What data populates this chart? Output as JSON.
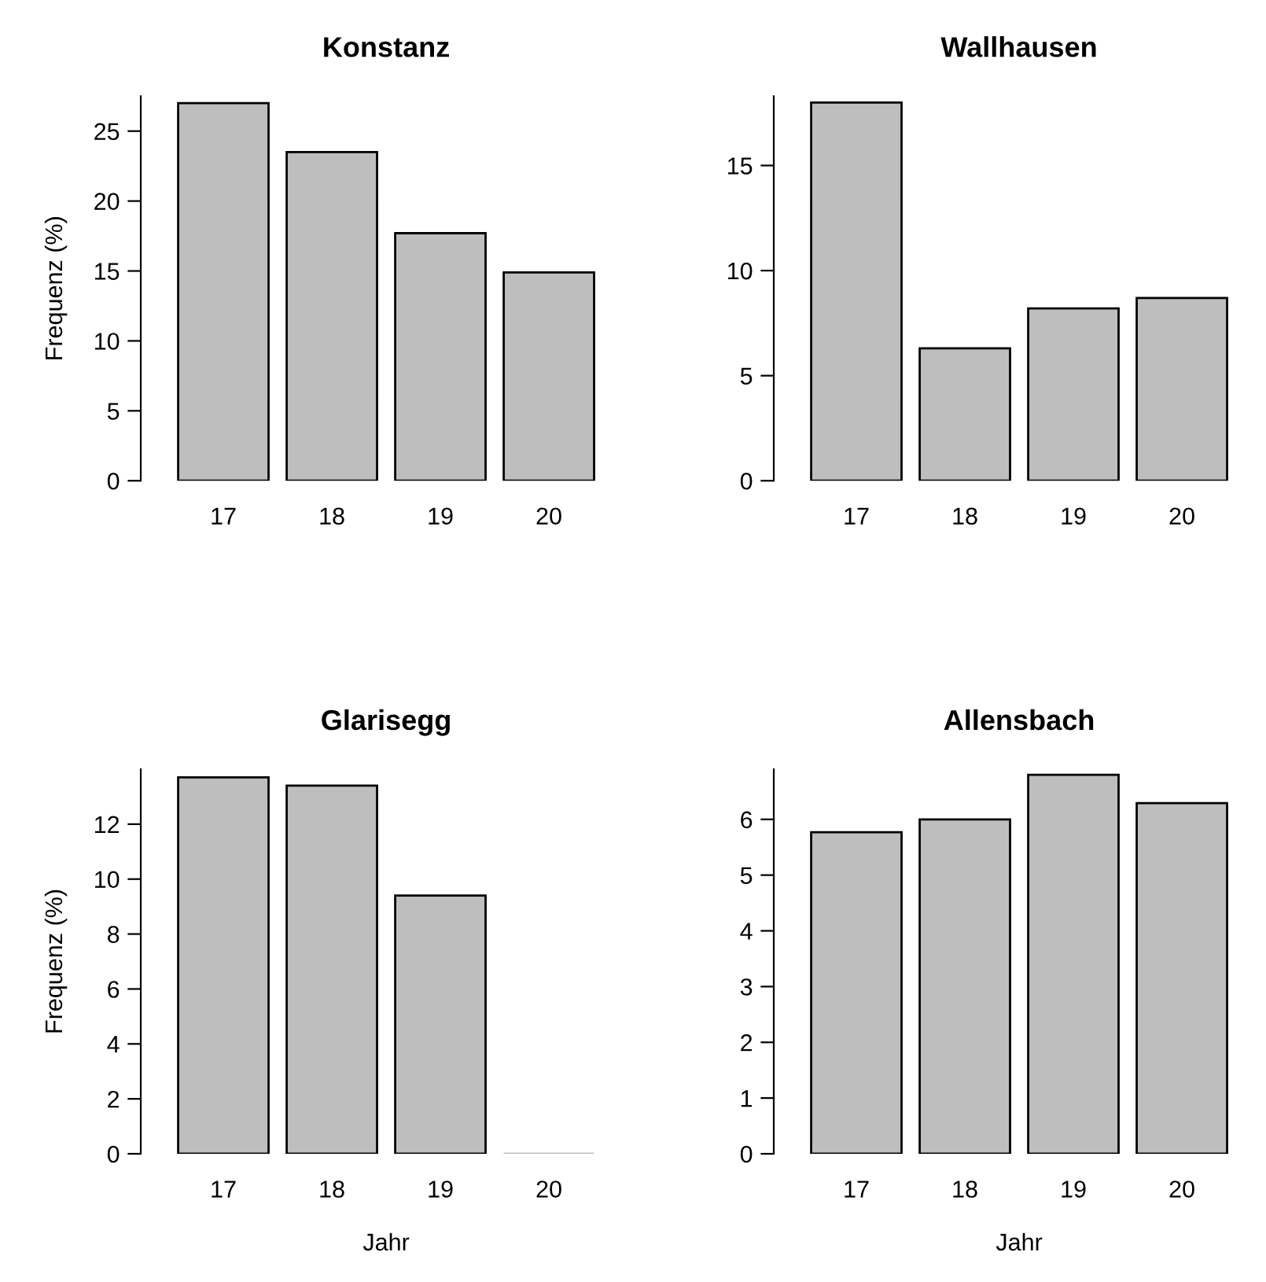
{
  "chart_data": [
    {
      "type": "bar",
      "title": "Konstanz",
      "ylabel": "Frequenz (%)",
      "categories": [
        "17",
        "18",
        "19",
        "20"
      ],
      "values": [
        27.0,
        23.5,
        17.7,
        14.9
      ],
      "color": "#bebebe",
      "ylim": [
        0,
        27.5
      ],
      "yticks": [
        0,
        5,
        10,
        15,
        20,
        25
      ],
      "grid": false
    },
    {
      "type": "bar",
      "title": "Wallhausen",
      "categories": [
        "17",
        "18",
        "19",
        "20"
      ],
      "values": [
        18.0,
        6.3,
        8.2,
        8.7
      ],
      "color": "#bebebe",
      "ylim": [
        0,
        18.3
      ],
      "yticks": [
        0,
        5,
        10,
        15
      ],
      "grid": false
    },
    {
      "type": "bar",
      "title": "Glarisegg",
      "ylabel": "Frequenz (%)",
      "xlabel": "Jahr",
      "categories": [
        "17",
        "18",
        "19",
        "20"
      ],
      "values": [
        13.7,
        13.4,
        9.4,
        0
      ],
      "color": "#bebebe",
      "ylim": [
        0,
        14.0
      ],
      "yticks": [
        0,
        2,
        4,
        6,
        8,
        10,
        12
      ],
      "grid": false
    },
    {
      "type": "bar",
      "title": "Allensbach",
      "xlabel": "Jahr",
      "categories": [
        "17",
        "18",
        "19",
        "20"
      ],
      "values": [
        5.77,
        6.0,
        6.8,
        6.29
      ],
      "color": "#bebebe",
      "ylim": [
        0,
        6.9
      ],
      "yticks": [
        0,
        1,
        2,
        3,
        4,
        5,
        6
      ],
      "grid": false
    }
  ]
}
